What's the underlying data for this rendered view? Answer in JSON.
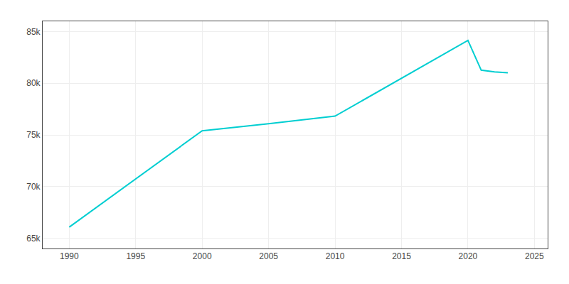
{
  "chart_data": {
    "type": "line",
    "x": [
      1990,
      2000,
      2005,
      2010,
      2020,
      2021,
      2022,
      2023
    ],
    "values": [
      66072,
      75402,
      76080,
      76815,
      84150,
      81270,
      81100,
      81020
    ],
    "color": "#00CED1",
    "xlim": [
      1988,
      2026
    ],
    "ylim": [
      64000,
      86000
    ],
    "xticks": [
      1990,
      1995,
      2000,
      2005,
      2010,
      2015,
      2020,
      2025
    ],
    "yticks": [
      {
        "value": 65000,
        "label": "65k"
      },
      {
        "value": 70000,
        "label": "70k"
      },
      {
        "value": 75000,
        "label": "75k"
      },
      {
        "value": 80000,
        "label": "80k"
      },
      {
        "value": 85000,
        "label": "85k"
      }
    ],
    "grid": true
  }
}
